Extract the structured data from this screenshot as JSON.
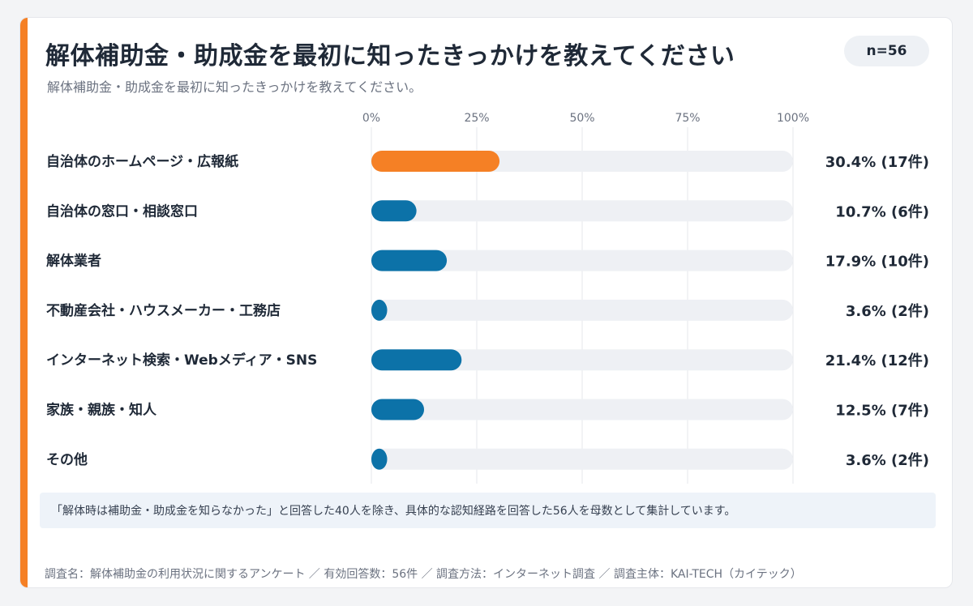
{
  "title": "解体補助金・助成金を最初に知ったきっかけを教えてください",
  "subtitle": "解体補助金・助成金を最初に知ったきっかけを教えてください。",
  "badge": "n=56",
  "note": "「解体時は補助金・助成金を知らなかった」と回答した40人を除き、具体的な認知経路を回答した56人を母数として集計しています。",
  "footer": "調査名：解体補助金の利用状況に関するアンケート ／ 有効回答数：56件 ／ 調査方法：インターネット調査 ／ 調査主体：KAI-TECH（カイテック）",
  "colors": {
    "accent": "#f58025",
    "primary": "#0c72a8",
    "track": "#eef0f4"
  },
  "chart_data": {
    "type": "bar",
    "orientation": "horizontal",
    "categories": [
      "自治体のホームページ・広報紙",
      "自治体の窓口・相談窓口",
      "解体業者",
      "不動産会社・ハウスメーカー・工務店",
      "インターネット検索・Webメディア・SNS",
      "家族・親族・知人",
      "その他"
    ],
    "values": [
      30.4,
      10.7,
      17.9,
      3.6,
      21.4,
      12.5,
      3.6
    ],
    "counts": [
      17,
      6,
      10,
      2,
      12,
      7,
      2
    ],
    "value_labels": [
      "30.4% (17件)",
      "10.7% (6件)",
      "17.9% (10件)",
      "3.6% (2件)",
      "21.4% (12件)",
      "12.5% (7件)",
      "3.6% (2件)"
    ],
    "highlight_index": 0,
    "xlim": [
      0,
      100
    ],
    "xticks": [
      0,
      25,
      50,
      75,
      100
    ],
    "xtick_labels": [
      "0%",
      "25%",
      "50%",
      "75%",
      "100%"
    ],
    "grid": true
  }
}
